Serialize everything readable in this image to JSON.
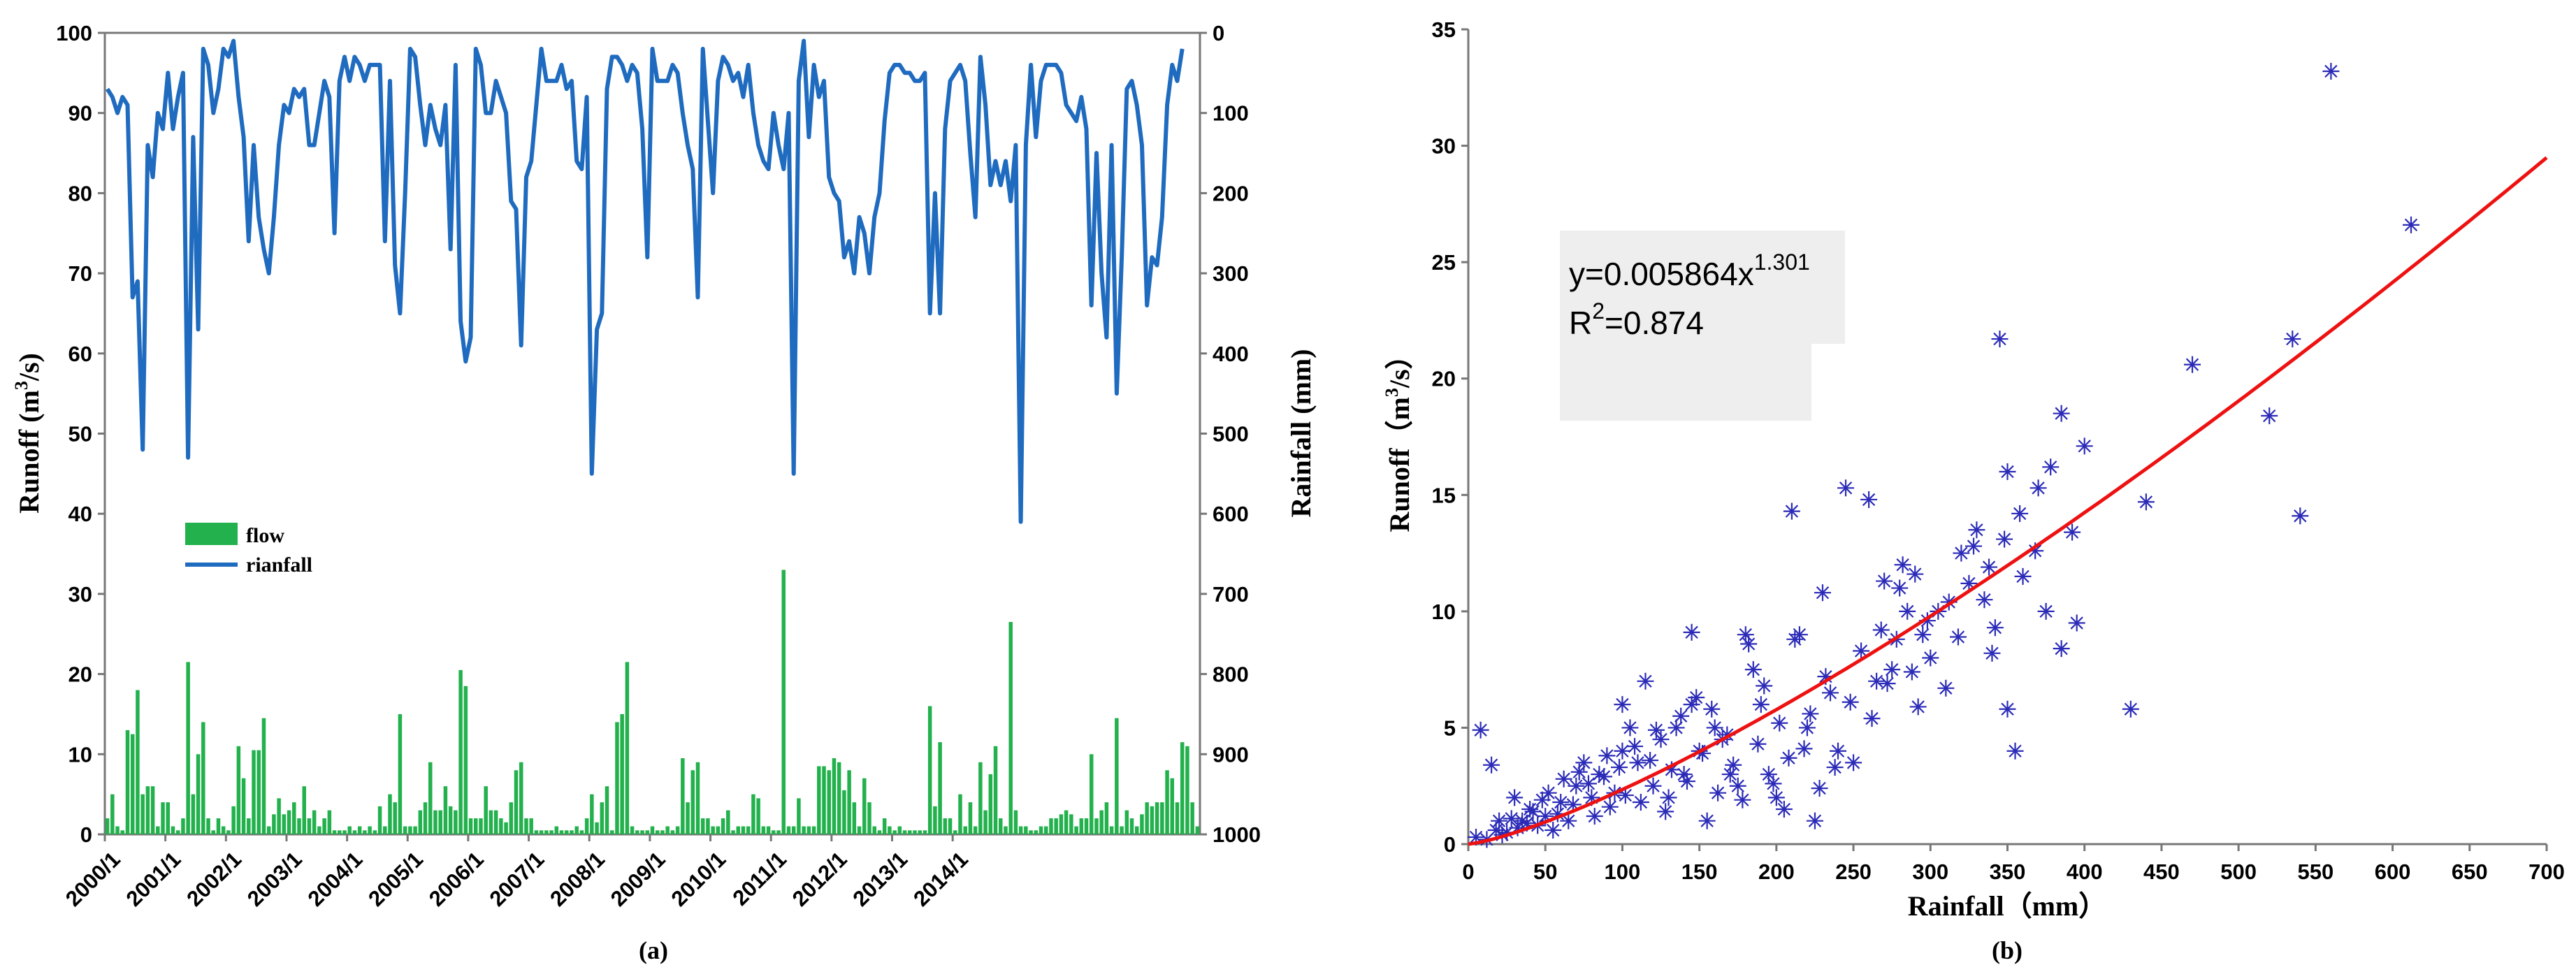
{
  "colors": {
    "flow_bar": "#22b14c",
    "rainfall_line": "#1f6bbf",
    "scatter_marker": "#2b2bb8",
    "fit_curve": "#ee1111",
    "axis": "#777777",
    "eq_box": "#eeeeee"
  },
  "chart_data": [
    {
      "type": "bar+line",
      "caption": "(a)",
      "ylabel_left": "Runoff (m³/s)",
      "ylabel_left_base": "Runoff (m",
      "ylabel_left_sup": "3",
      "ylabel_left_tail": "/s)",
      "ylabel_right": "Rainfall (mm)",
      "ylim_left": [
        0,
        100
      ],
      "ylim_right": [
        1000,
        0
      ],
      "yticks_left": [
        "0",
        "10",
        "20",
        "30",
        "40",
        "50",
        "60",
        "70",
        "80",
        "90",
        "100"
      ],
      "yticks_right": [
        "1000",
        "900",
        "800",
        "700",
        "600",
        "500",
        "400",
        "300",
        "200",
        "100",
        "0"
      ],
      "xticks": [
        "2000/1",
        "2001/1",
        "2002/1",
        "2003/1",
        "2004/1",
        "2005/1",
        "2006/1",
        "2007/1",
        "2008/1",
        "2009/1",
        "2010/1",
        "2011/1",
        "2012/1",
        "2013/1",
        "2014/1"
      ],
      "legend": {
        "flow_label": "flow",
        "rainfall_label": "rianfall"
      },
      "series": [
        {
          "name": "flow",
          "axis": "left",
          "values": [
            2,
            5,
            1,
            0.5,
            13,
            12.5,
            18,
            5,
            6,
            6,
            1,
            4,
            4,
            1,
            0.5,
            2,
            21.5,
            5,
            10,
            14,
            2,
            0.5,
            2,
            1,
            0.5,
            3.5,
            11,
            7,
            2,
            10.5,
            10.5,
            14.5,
            1,
            2.5,
            4.5,
            2.5,
            3,
            4,
            2,
            6,
            2,
            3,
            1,
            2,
            3,
            0.5,
            0.5,
            0.5,
            1,
            0.5,
            1,
            0.5,
            1,
            0.5,
            3.5,
            1,
            5,
            4,
            15,
            1,
            1,
            1,
            3,
            4,
            9,
            3,
            3,
            6,
            3.5,
            3,
            20.5,
            18.5,
            2,
            2,
            2,
            6,
            3,
            3,
            2,
            1.5,
            4,
            8,
            9,
            2,
            2,
            0.5,
            0.5,
            0.5,
            0.5,
            1,
            0.5,
            0.5,
            0.5,
            1,
            0.5,
            2,
            5,
            1.5,
            4,
            6,
            0.5,
            14,
            15,
            21.5,
            1,
            0.5,
            0.5,
            0.5,
            1,
            0.5,
            0.5,
            1,
            0.5,
            1,
            9.5,
            4,
            8,
            9,
            2,
            2,
            1,
            1,
            2,
            3,
            0.5,
            1,
            1,
            1,
            5,
            4.5,
            1,
            1,
            0.5,
            0.5,
            33,
            1,
            1,
            4.5,
            1,
            1,
            1,
            8.5,
            8.5,
            8,
            9.5,
            9,
            5.5,
            8,
            4,
            1,
            7,
            4,
            1,
            0.5,
            2,
            1,
            0.5,
            1,
            0.5,
            0.5,
            0.5,
            0.5,
            0.5,
            16,
            3.5,
            11.5,
            2,
            2,
            0.5,
            5,
            1,
            4,
            1,
            9,
            3,
            7.5,
            11,
            2,
            1,
            26.5,
            3,
            1,
            1,
            0.5,
            0.5,
            1,
            1,
            2,
            2,
            2.5,
            3,
            2.5,
            1,
            2,
            2,
            10,
            2,
            3,
            4,
            1,
            14.5,
            1,
            3,
            2,
            1,
            2.5,
            4,
            3.5,
            4,
            4,
            8,
            7,
            4,
            11.5,
            11,
            4,
            1
          ]
        },
        {
          "name": "rainfall",
          "axis": "right",
          "values": [
            70,
            80,
            100,
            80,
            90,
            330,
            310,
            520,
            140,
            180,
            100,
            120,
            50,
            120,
            80,
            50,
            530,
            130,
            370,
            20,
            40,
            100,
            70,
            20,
            30,
            10,
            80,
            130,
            260,
            140,
            230,
            270,
            300,
            230,
            140,
            90,
            100,
            70,
            80,
            70,
            140,
            140,
            100,
            60,
            80,
            250,
            60,
            30,
            60,
            30,
            40,
            60,
            40,
            40,
            40,
            260,
            60,
            290,
            350,
            200,
            20,
            30,
            90,
            140,
            90,
            120,
            140,
            90,
            270,
            40,
            360,
            410,
            380,
            20,
            40,
            100,
            100,
            60,
            80,
            100,
            210,
            220,
            390,
            180,
            160,
            90,
            20,
            60,
            60,
            60,
            40,
            70,
            60,
            160,
            170,
            80,
            550,
            370,
            350,
            70,
            30,
            30,
            40,
            60,
            40,
            50,
            120,
            280,
            20,
            60,
            60,
            60,
            40,
            50,
            100,
            140,
            170,
            330,
            20,
            110,
            200,
            60,
            30,
            40,
            60,
            50,
            80,
            40,
            100,
            140,
            160,
            170,
            100,
            140,
            170,
            100,
            550,
            60,
            10,
            130,
            40,
            80,
            60,
            180,
            200,
            210,
            280,
            260,
            300,
            230,
            250,
            300,
            230,
            200,
            110,
            50,
            40,
            40,
            50,
            50,
            60,
            60,
            50,
            350,
            200,
            350,
            120,
            60,
            50,
            40,
            60,
            150,
            230,
            30,
            90,
            190,
            160,
            190,
            160,
            210,
            140,
            610,
            140,
            40,
            130,
            60,
            40,
            40,
            40,
            50,
            90,
            100,
            110,
            80,
            120,
            340,
            150,
            300,
            380,
            140,
            450,
            280,
            70,
            60,
            90,
            140,
            340,
            280,
            290,
            230,
            90,
            40,
            60,
            20
          ]
        }
      ]
    },
    {
      "type": "scatter",
      "caption": "(b)",
      "xlabel": "Rainfall（mm）",
      "ylabel": "Runoff（m³/s）",
      "ylabel_base": "Runoff（m",
      "ylabel_sup": "3",
      "ylabel_tail": "/s）",
      "xlim": [
        0,
        700
      ],
      "ylim": [
        0,
        35
      ],
      "xticks": [
        "0",
        "50",
        "100",
        "150",
        "200",
        "250",
        "300",
        "350",
        "400",
        "450",
        "500",
        "550",
        "600",
        "650",
        "700"
      ],
      "yticks": [
        "0",
        "5",
        "10",
        "15",
        "20",
        "25",
        "30",
        "35"
      ],
      "fit": {
        "model": "power",
        "a": 0.005864,
        "b": 1.301,
        "r2": 0.874,
        "equation_base": "y=0.005864x",
        "equation_exp": "1.301",
        "r2_base": "R",
        "r2_sup": "2",
        "r2_tail": "=0.874"
      },
      "points": [
        [
          8,
          4.9
        ],
        [
          15,
          3.4
        ],
        [
          20,
          1
        ],
        [
          25,
          0.5
        ],
        [
          30,
          2
        ],
        [
          35,
          1
        ],
        [
          40,
          1.5
        ],
        [
          45,
          0.8
        ],
        [
          50,
          1.2
        ],
        [
          55,
          0.6
        ],
        [
          60,
          1.8
        ],
        [
          65,
          1
        ],
        [
          70,
          2.5
        ],
        [
          75,
          3.5
        ],
        [
          80,
          2
        ],
        [
          85,
          3
        ],
        [
          90,
          3.8
        ],
        [
          95,
          2.2
        ],
        [
          100,
          6
        ],
        [
          100,
          4
        ],
        [
          105,
          5
        ],
        [
          110,
          3.5
        ],
        [
          115,
          7
        ],
        [
          120,
          2.5
        ],
        [
          125,
          4.5
        ],
        [
          130,
          2
        ],
        [
          135,
          5
        ],
        [
          140,
          3
        ],
        [
          145,
          9.1
        ],
        [
          145,
          6
        ],
        [
          150,
          4
        ],
        [
          155,
          1
        ],
        [
          160,
          5
        ],
        [
          165,
          4.5
        ],
        [
          170,
          3
        ],
        [
          175,
          2.5
        ],
        [
          180,
          9
        ],
        [
          185,
          7.5
        ],
        [
          190,
          6
        ],
        [
          195,
          3
        ],
        [
          200,
          2
        ],
        [
          205,
          1.5
        ],
        [
          210,
          14.3
        ],
        [
          215,
          9
        ],
        [
          220,
          5
        ],
        [
          225,
          1
        ],
        [
          230,
          10.8
        ],
        [
          235,
          6.5
        ],
        [
          240,
          4
        ],
        [
          245,
          15.3
        ],
        [
          250,
          3.5
        ],
        [
          260,
          14.8
        ],
        [
          265,
          7
        ],
        [
          270,
          11.3
        ],
        [
          275,
          7.5
        ],
        [
          280,
          11
        ],
        [
          285,
          10
        ],
        [
          290,
          11.6
        ],
        [
          295,
          9
        ],
        [
          300,
          8
        ],
        [
          305,
          10
        ],
        [
          310,
          6.7
        ],
        [
          320,
          12.5
        ],
        [
          325,
          11.2
        ],
        [
          330,
          13.5
        ],
        [
          335,
          10.5
        ],
        [
          340,
          8.2
        ],
        [
          345,
          21.7
        ],
        [
          350,
          16
        ],
        [
          350,
          5.8
        ],
        [
          355,
          4
        ],
        [
          360,
          11.5
        ],
        [
          370,
          15.3
        ],
        [
          375,
          10
        ],
        [
          385,
          18.5
        ],
        [
          385,
          8.4
        ],
        [
          395,
          9.5
        ],
        [
          430,
          5.8
        ],
        [
          440,
          14.7
        ],
        [
          470,
          20.6
        ],
        [
          520,
          18.4
        ],
        [
          535,
          21.7
        ],
        [
          540,
          14.1
        ],
        [
          560,
          33.2
        ],
        [
          612,
          26.6
        ],
        [
          5,
          0.3
        ],
        [
          12,
          0.2
        ],
        [
          18,
          0.6
        ],
        [
          22,
          0.4
        ],
        [
          28,
          1.1
        ],
        [
          32,
          0.7
        ],
        [
          38,
          0.9
        ],
        [
          42,
          1.4
        ],
        [
          48,
          1.9
        ],
        [
          52,
          2.2
        ],
        [
          58,
          1.3
        ],
        [
          62,
          2.8
        ],
        [
          68,
          1.7
        ],
        [
          72,
          3.1
        ],
        [
          78,
          2.6
        ],
        [
          82,
          1.2
        ],
        [
          88,
          2.9
        ],
        [
          92,
          1.6
        ],
        [
          98,
          3.3
        ],
        [
          102,
          2.1
        ],
        [
          108,
          4.2
        ],
        [
          112,
          1.8
        ],
        [
          118,
          3.6
        ],
        [
          122,
          4.9
        ],
        [
          128,
          1.4
        ],
        [
          132,
          3.2
        ],
        [
          138,
          5.5
        ],
        [
          142,
          2.7
        ],
        [
          148,
          6.3
        ],
        [
          152,
          3.9
        ],
        [
          158,
          5.8
        ],
        [
          162,
          2.2
        ],
        [
          168,
          4.7
        ],
        [
          172,
          3.4
        ],
        [
          178,
          1.9
        ],
        [
          182,
          8.6
        ],
        [
          188,
          4.3
        ],
        [
          192,
          6.8
        ],
        [
          198,
          2.6
        ],
        [
          202,
          5.2
        ],
        [
          208,
          3.7
        ],
        [
          212,
          8.8
        ],
        [
          218,
          4.1
        ],
        [
          222,
          5.6
        ],
        [
          228,
          2.4
        ],
        [
          232,
          7.2
        ],
        [
          238,
          3.3
        ],
        [
          248,
          6.1
        ],
        [
          255,
          8.3
        ],
        [
          262,
          5.4
        ],
        [
          268,
          9.2
        ],
        [
          272,
          6.9
        ],
        [
          278,
          8.8
        ],
        [
          282,
          12
        ],
        [
          288,
          7.4
        ],
        [
          292,
          5.9
        ],
        [
          298,
          9.6
        ],
        [
          312,
          10.4
        ],
        [
          318,
          8.9
        ],
        [
          328,
          12.8
        ],
        [
          338,
          11.9
        ],
        [
          342,
          9.3
        ],
        [
          348,
          13.1
        ],
        [
          358,
          14.2
        ],
        [
          368,
          12.6
        ],
        [
          378,
          16.2
        ],
        [
          392,
          13.4
        ],
        [
          400,
          17.1
        ]
      ]
    }
  ]
}
